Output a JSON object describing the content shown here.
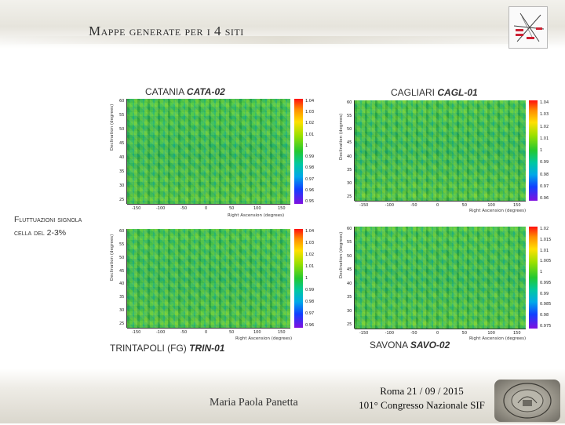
{
  "slide": {
    "title": "Mappe generate per i 4 siti",
    "side_note_line1": "Fluttuazioni signola",
    "side_note_line2": "cella del 2-3%"
  },
  "maps": [
    {
      "site": "CATANIA",
      "station": "CATA-02",
      "caption_pos": "top",
      "ylabel": "Declination (degrees)",
      "xlabel": "Right Ascension (degrees)",
      "yticks": [
        "60",
        "55",
        "50",
        "45",
        "40",
        "35",
        "30",
        "25"
      ],
      "xticks": [
        "-150",
        "-100",
        "-50",
        "0",
        "50",
        "100",
        "150"
      ],
      "cbar_ticks": [
        "1.04",
        "1.03",
        "1.02",
        "1.01",
        "1",
        "0.99",
        "0.98",
        "0.97",
        "0.96",
        "0.95"
      ]
    },
    {
      "site": "CAGLIARI",
      "station": "CAGL-01",
      "caption_pos": "top",
      "ylabel": "Declination (degrees)",
      "xlabel": "Right Ascension (degrees)",
      "yticks": [
        "60",
        "55",
        "50",
        "45",
        "40",
        "35",
        "30",
        "25"
      ],
      "xticks": [
        "-150",
        "-100",
        "-50",
        "0",
        "50",
        "100",
        "150"
      ],
      "cbar_ticks": [
        "1.04",
        "1.03",
        "1.02",
        "1.01",
        "1",
        "0.99",
        "0.98",
        "0.97",
        "0.96"
      ]
    },
    {
      "site": "TRINTAPOLI (FG)",
      "station": "TRIN-01",
      "caption_pos": "bottom",
      "ylabel": "Declination (degrees)",
      "xlabel": "Right Ascension (degrees)",
      "yticks": [
        "60",
        "55",
        "50",
        "45",
        "40",
        "35",
        "30",
        "25"
      ],
      "xticks": [
        "-150",
        "-100",
        "-50",
        "0",
        "50",
        "100",
        "150"
      ],
      "cbar_ticks": [
        "1.04",
        "1.03",
        "1.02",
        "1.01",
        "1",
        "0.99",
        "0.98",
        "0.97",
        "0.96"
      ]
    },
    {
      "site": "SAVONA",
      "station": "SAVO-02",
      "caption_pos": "bottom",
      "ylabel": "Declination (degrees)",
      "xlabel": "Right Ascension (degrees)",
      "yticks": [
        "60",
        "55",
        "50",
        "45",
        "40",
        "35",
        "30",
        "25"
      ],
      "xticks": [
        "-150",
        "-100",
        "-50",
        "0",
        "50",
        "100",
        "150"
      ],
      "cbar_ticks": [
        "1.02",
        "1.015",
        "1.01",
        "1.005",
        "1",
        "0.995",
        "0.99",
        "0.985",
        "0.98",
        "0.975"
      ]
    }
  ],
  "footer": {
    "author": "Maria Paola Panetta",
    "venue_line1": "Roma 21 / 09 / 2015",
    "venue_line2": "101° Congresso Nazionale SIF"
  },
  "icons": {
    "logo": "eee-logo-icon",
    "seal": "university-seal-icon"
  }
}
